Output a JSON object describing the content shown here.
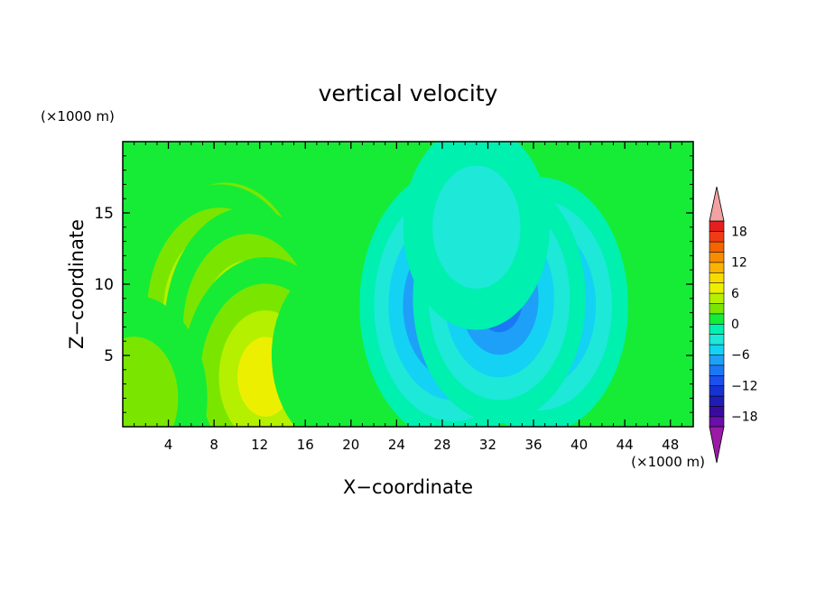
{
  "chart_data": {
    "type": "heatmap",
    "title": "vertical velocity",
    "xlabel": "X−coordinate",
    "ylabel": "Z−coordinate",
    "x_unit": "(×1000 m)",
    "y_unit": "(×1000 m)",
    "xlim": [
      0,
      50
    ],
    "ylim": [
      0,
      20
    ],
    "x_ticks": [
      4,
      8,
      12,
      16,
      20,
      24,
      28,
      32,
      36,
      40,
      44,
      48
    ],
    "y_ticks": [
      5,
      10,
      15
    ],
    "x_tick_labels": [
      "4",
      "8",
      "12",
      "16",
      "20",
      "24",
      "28",
      "32",
      "36",
      "40",
      "44",
      "48"
    ],
    "y_tick_labels": [
      "5",
      "10",
      "15"
    ],
    "colorbar": {
      "levels": [
        -20,
        -18,
        -16,
        -14,
        -12,
        -10,
        -8,
        -6,
        -4,
        -2,
        0,
        2,
        4,
        6,
        8,
        10,
        12,
        14,
        16,
        18,
        20
      ],
      "labels": [
        "18",
        "12",
        "6",
        "0",
        "−6",
        "−12",
        "−18"
      ],
      "label_values": [
        18,
        12,
        6,
        0,
        -6,
        -12,
        -18
      ],
      "colors": [
        "#6a0fa8",
        "#3a0aa0",
        "#1e1eb4",
        "#1632d0",
        "#1a50ee",
        "#1a78f5",
        "#1ea0f8",
        "#14d2f4",
        "#1ee8d8",
        "#00f0b0",
        "#16ec36",
        "#7ae600",
        "#b4f000",
        "#ecf000",
        "#f8dc00",
        "#f8b400",
        "#f88c00",
        "#f46400",
        "#f03c14",
        "#e61e1e"
      ],
      "over_color": "#f2a2a2",
      "under_color": "#9a1aa6"
    },
    "features": [
      {
        "x": 9.0,
        "z": 9.0,
        "w": 12.0
      },
      {
        "x": 8.5,
        "z": 8.0,
        "w": 10.0
      },
      {
        "x": 11.0,
        "z": 7.0,
        "w": 8.0
      },
      {
        "x": 12.5,
        "z": 3.5,
        "w": 8.0
      },
      {
        "x": 1.0,
        "z": 2.0,
        "w": 4.0
      },
      {
        "x": 19.0,
        "z": 5.0,
        "w": 2.0
      },
      {
        "x": 29.0,
        "z": 8.5,
        "w": -12.0
      },
      {
        "x": 36.5,
        "z": 8.5,
        "w": -10.0
      },
      {
        "x": 33.0,
        "z": 9.0,
        "w": -9.0
      },
      {
        "x": 31.0,
        "z": 14.0,
        "w": -4.0
      }
    ]
  }
}
